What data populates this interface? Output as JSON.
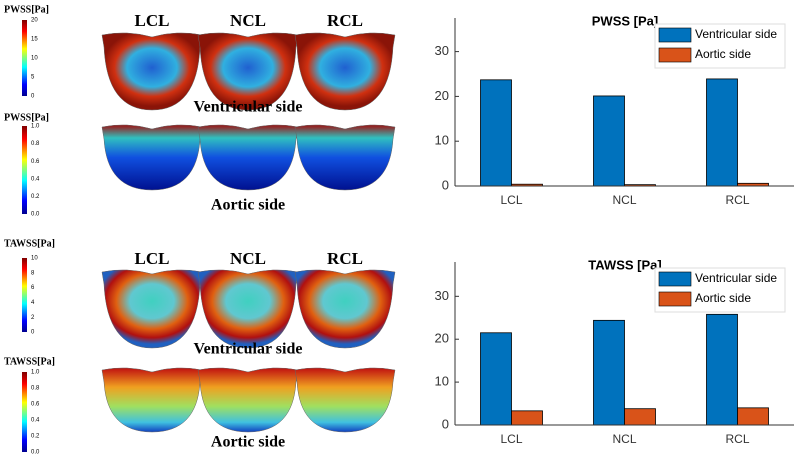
{
  "chart_data": [
    {
      "type": "bar",
      "title": "PWSS [Pa]",
      "categories": [
        "LCL",
        "NCL",
        "RCL"
      ],
      "series": [
        {
          "name": "Ventricular side",
          "color": "#0072bd",
          "values": [
            23.7,
            20.1,
            23.9
          ]
        },
        {
          "name": "Aortic side",
          "color": "#d95319",
          "values": [
            0.4,
            0.3,
            0.6
          ]
        }
      ],
      "ylim": [
        0,
        37.5
      ],
      "yticks": [
        0,
        10,
        20,
        30
      ],
      "legend": "upper right"
    },
    {
      "type": "bar",
      "title": "TAWSS [Pa]",
      "categories": [
        "LCL",
        "NCL",
        "RCL"
      ],
      "series": [
        {
          "name": "Ventricular side",
          "color": "#0072bd",
          "values": [
            21.5,
            24.4,
            25.8
          ]
        },
        {
          "name": "Aortic side",
          "color": "#d95319",
          "values": [
            3.3,
            3.8,
            4.0
          ]
        }
      ],
      "ylim": [
        0,
        38
      ],
      "yticks": [
        0,
        10,
        20,
        30
      ],
      "legend": "upper right"
    }
  ],
  "heatmap_panels": [
    {
      "colorbar_title": "PWSS[Pa]",
      "colorbar_ticks": [
        "20",
        "15",
        "10",
        "5",
        "0"
      ],
      "column_labels": [
        "LCL",
        "NCL",
        "RCL"
      ],
      "caption": "Ventricular side"
    },
    {
      "colorbar_title": "PWSS[Pa]",
      "colorbar_ticks": [
        "1.0",
        "0.8",
        "0.6",
        "0.4",
        "0.2",
        "0.0"
      ],
      "caption": "Aortic side"
    },
    {
      "colorbar_title": "TAWSS[Pa]",
      "colorbar_ticks": [
        "10",
        "8",
        "6",
        "4",
        "2",
        "0"
      ],
      "column_labels": [
        "LCL",
        "NCL",
        "RCL"
      ],
      "caption": "Ventricular side"
    },
    {
      "colorbar_title": "TAWSS[Pa]",
      "colorbar_ticks": [
        "1.0",
        "0.8",
        "0.6",
        "0.4",
        "0.2",
        "0.0"
      ],
      "caption": "Aortic side"
    }
  ]
}
